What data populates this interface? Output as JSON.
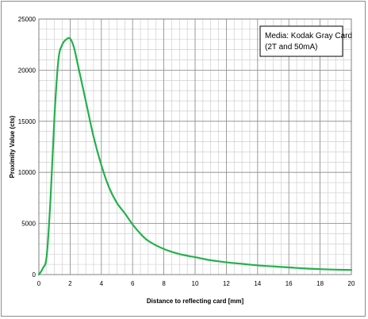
{
  "chart_data": {
    "type": "line",
    "title": "",
    "xlabel": "Distance  to reflecting card [mm]",
    "ylabel": "Proximity Value (cts)",
    "xlim": [
      0,
      20
    ],
    "ylim": [
      0,
      25000
    ],
    "x_ticks": [
      0,
      2,
      4,
      6,
      8,
      10,
      12,
      14,
      16,
      18,
      20
    ],
    "y_ticks": [
      0,
      5000,
      10000,
      15000,
      20000,
      25000
    ],
    "x_minor_step": 0.5,
    "y_minor_step": 1000,
    "grid": true,
    "annotation": {
      "lines": [
        "Media: Kodak Gray Card",
        "(2T and 50mA)"
      ],
      "placement": "top-right"
    },
    "series": [
      {
        "color": "#22b14c",
        "x": [
          0,
          0.25,
          0.5,
          0.75,
          1.0,
          1.25,
          1.5,
          1.75,
          2.0,
          2.25,
          2.5,
          3.0,
          3.5,
          4.0,
          4.5,
          5.0,
          5.5,
          6.0,
          6.5,
          7.0,
          8.0,
          9.0,
          10.0,
          11.0,
          12.0,
          13.0,
          14.0,
          15.0,
          16.0,
          17.0,
          18.0,
          19.0,
          20.0
        ],
        "y": [
          0,
          600,
          1800,
          7500,
          15500,
          21000,
          22500,
          23000,
          23100,
          22200,
          20500,
          17000,
          13500,
          10700,
          8500,
          7000,
          6000,
          4900,
          4000,
          3300,
          2500,
          2000,
          1700,
          1400,
          1200,
          1050,
          900,
          800,
          700,
          600,
          530,
          480,
          450
        ]
      }
    ]
  }
}
